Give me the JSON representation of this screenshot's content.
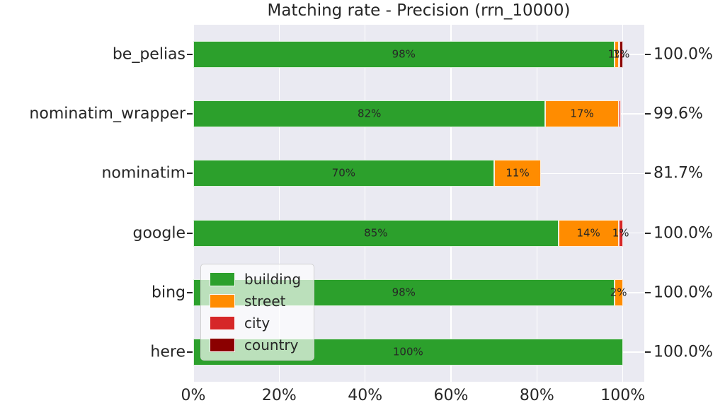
{
  "chart_data": {
    "type": "bar",
    "orientation": "horizontal",
    "stacked": true,
    "title": "Matching rate - Precision (rrn_10000)",
    "categories": [
      "be_pelias",
      "nominatim_wrapper",
      "nominatim",
      "google",
      "bing",
      "here"
    ],
    "series": [
      {
        "name": "building",
        "color": "#2ca02c",
        "values": [
          98,
          82,
          70,
          85,
          98,
          100
        ],
        "labels": [
          "98%",
          "82%",
          "70%",
          "85%",
          "98%",
          "100%"
        ]
      },
      {
        "name": "street",
        "color": "#ff8c00",
        "values": [
          1,
          17,
          11,
          14,
          2,
          0
        ],
        "labels": [
          "1%",
          "17%",
          "11%",
          "14%",
          "2%",
          ""
        ]
      },
      {
        "name": "city",
        "color": "#d62728",
        "values": [
          0.3,
          0.6,
          0,
          1,
          0,
          0
        ],
        "labels": [
          "",
          "",
          "",
          "1%",
          "",
          ""
        ]
      },
      {
        "name": "country",
        "color": "#8b0000",
        "values": [
          0.7,
          0,
          0,
          0,
          0,
          0
        ],
        "labels": [
          "1%",
          "",
          "",
          "",
          "",
          ""
        ]
      }
    ],
    "totals": [
      "100.0%",
      "99.6%",
      "81.7%",
      "100.0%",
      "100.0%",
      "100.0%"
    ],
    "x_ticks": [
      {
        "value": 0,
        "label": "0%"
      },
      {
        "value": 20,
        "label": "20%"
      },
      {
        "value": 40,
        "label": "40%"
      },
      {
        "value": 60,
        "label": "60%"
      },
      {
        "value": 80,
        "label": "80%"
      },
      {
        "value": 100,
        "label": "100%"
      }
    ],
    "xlim": [
      0,
      105
    ],
    "legend": {
      "entries": [
        "building",
        "street",
        "city",
        "country"
      ],
      "position": "lower left inside"
    },
    "style": {
      "plot_bg": "#eaeaf2",
      "grid_color": "#ffffff",
      "text_color": "#262626"
    }
  }
}
